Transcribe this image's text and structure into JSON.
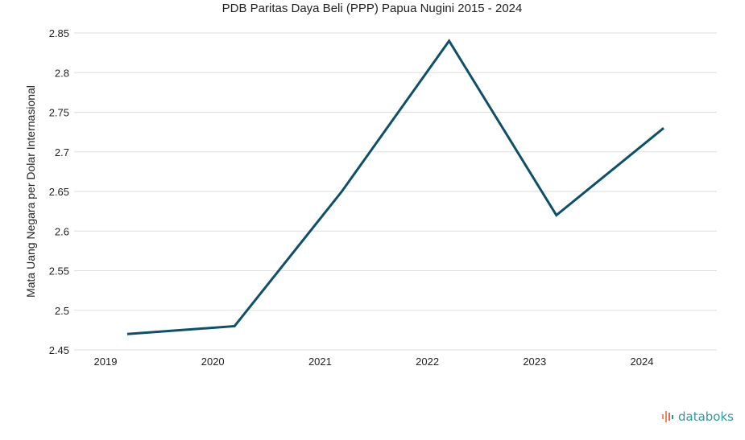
{
  "chart_data": {
    "type": "line",
    "title": "PDB Paritas Daya Beli (PPP) Papua Nugini 2015 - 2024",
    "xlabel": "",
    "ylabel": "Mata Uang Negara per Dolar Internasional",
    "categories": [
      "2019",
      "2020",
      "2021",
      "2022",
      "2023",
      "2024"
    ],
    "series": [
      {
        "values": [
          2.47,
          2.48,
          2.65,
          2.84,
          2.62,
          2.73
        ]
      }
    ],
    "ylim": [
      2.45,
      2.85
    ],
    "yticks": [
      "2.45",
      "2.5",
      "2.55",
      "2.6",
      "2.65",
      "2.7",
      "2.75",
      "2.8",
      "2.85"
    ],
    "grid": true,
    "line_color": "#0d5068"
  },
  "brand": {
    "name": "databoks",
    "color": "#2f9aa0",
    "icon": "databoks-logo-icon"
  }
}
